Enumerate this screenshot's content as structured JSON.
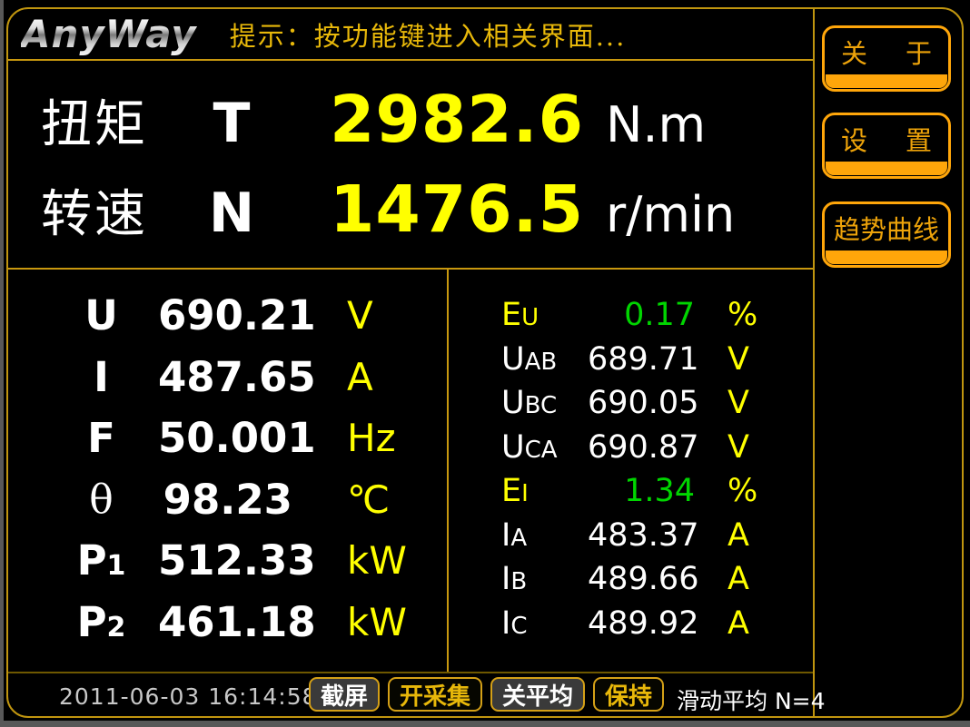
{
  "header": {
    "logo_text": "AnyWay",
    "hint_text": "提示：按功能键进入相关界面..."
  },
  "torque_speed": {
    "rows": [
      {
        "name": "扭矩",
        "symbol": "T",
        "value": "2982.6",
        "unit": "N.m"
      },
      {
        "name": "转速",
        "symbol": "N",
        "value": "1476.5",
        "unit": "r/min"
      }
    ]
  },
  "electrical_panel": {
    "rows": [
      {
        "label": "U",
        "sub": "",
        "value": "690.21",
        "unit": "V"
      },
      {
        "label": "I",
        "sub": "",
        "value": "487.65",
        "unit": "A"
      },
      {
        "label": "F",
        "sub": "",
        "value": "50.001",
        "unit": "Hz"
      },
      {
        "label": "θ",
        "sub": "",
        "value": "98.23",
        "unit": "℃"
      },
      {
        "label": "P",
        "sub": "1",
        "value": "512.33",
        "unit": "kW"
      },
      {
        "label": "P",
        "sub": "2",
        "value": "461.18",
        "unit": "kW"
      }
    ]
  },
  "phase_panel": {
    "rows": [
      {
        "label": "E",
        "sub": "U",
        "value": "0.17",
        "unit": "%"
      },
      {
        "label": "U",
        "sub": "AB",
        "value": "689.71",
        "unit": "V"
      },
      {
        "label": "U",
        "sub": "BC",
        "value": "690.05",
        "unit": "V"
      },
      {
        "label": "U",
        "sub": "CA",
        "value": "690.87",
        "unit": "V"
      },
      {
        "label": "E",
        "sub": "I",
        "value": "1.34",
        "unit": "%"
      },
      {
        "label": "I",
        "sub": "A",
        "value": "483.37",
        "unit": "A"
      },
      {
        "label": "I",
        "sub": "B",
        "value": "489.66",
        "unit": "A"
      },
      {
        "label": "I",
        "sub": "C",
        "value": "489.92",
        "unit": "A"
      }
    ]
  },
  "side_buttons": [
    {
      "label": "关于",
      "parts": [
        "关",
        "于"
      ]
    },
    {
      "label": "设置",
      "parts": [
        "设",
        "置"
      ]
    },
    {
      "label": "趋势曲线"
    }
  ],
  "status_bar": {
    "timestamp": "2011-06-03 16:14:58",
    "buttons": [
      {
        "label": "截屏"
      },
      {
        "label": "开采集"
      },
      {
        "label": "关平均"
      },
      {
        "label": "保持"
      }
    ],
    "mode_text": "滑动平均 N=4"
  },
  "colors": {
    "frame_gold": "#C8980F",
    "button_amber": "#FFA60A",
    "hint_gold": "#E8B80A",
    "value_yellow": "#FFFF00",
    "error_green": "#00D500",
    "text_white": "#FFFFFF",
    "timestamp_gray": "#C8C8C8"
  }
}
